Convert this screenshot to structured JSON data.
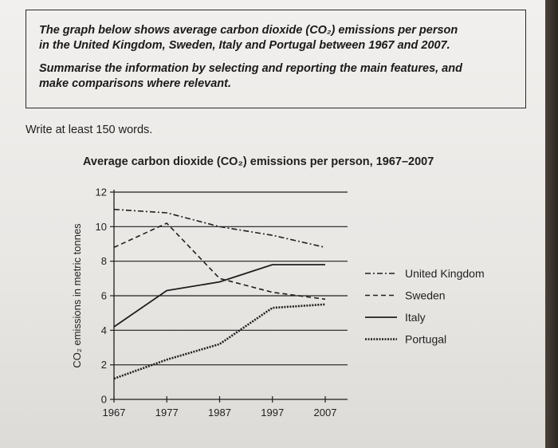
{
  "task": {
    "line1": "The graph below shows average carbon dioxide (CO₂) emissions per person",
    "line2": "in the United Kingdom, Sweden, Italy and Portugal between 1967 and 2007.",
    "line3": "Summarise the information by selecting and reporting the main features, and",
    "line4": "make comparisons where relevant."
  },
  "instruction": "Write at least 150 words.",
  "chart_data": {
    "type": "line",
    "title": "Average carbon dioxide (CO₂) emissions per person, 1967–2007",
    "ylabel": "CO₂ emissions in metric tonnes",
    "xlabel": "",
    "x": [
      1967,
      1977,
      1987,
      1997,
      2007
    ],
    "x_ticks": [
      "1967",
      "1977",
      "1987",
      "1997",
      "2007"
    ],
    "y_ticks": [
      "0",
      "2",
      "4",
      "6",
      "8",
      "10",
      "12"
    ],
    "ylim": [
      0,
      12
    ],
    "xlim": [
      1967,
      2007
    ],
    "grid": "horizontal",
    "legend_position": "right",
    "series": [
      {
        "name": "United Kingdom",
        "style": "dash-dot",
        "values": [
          11,
          10.8,
          10,
          9.5,
          8.8
        ]
      },
      {
        "name": "Sweden",
        "style": "dashed",
        "values": [
          8.8,
          10.2,
          7,
          6.2,
          5.8
        ]
      },
      {
        "name": "Italy",
        "style": "solid",
        "values": [
          4.2,
          6.3,
          6.8,
          7.8,
          7.8
        ]
      },
      {
        "name": "Portugal",
        "style": "dotted",
        "values": [
          1.2,
          2.3,
          3.2,
          5.3,
          5.5
        ]
      }
    ],
    "colors": {
      "ink": "#1f1f1f",
      "grid": "#1f1f1f"
    }
  }
}
